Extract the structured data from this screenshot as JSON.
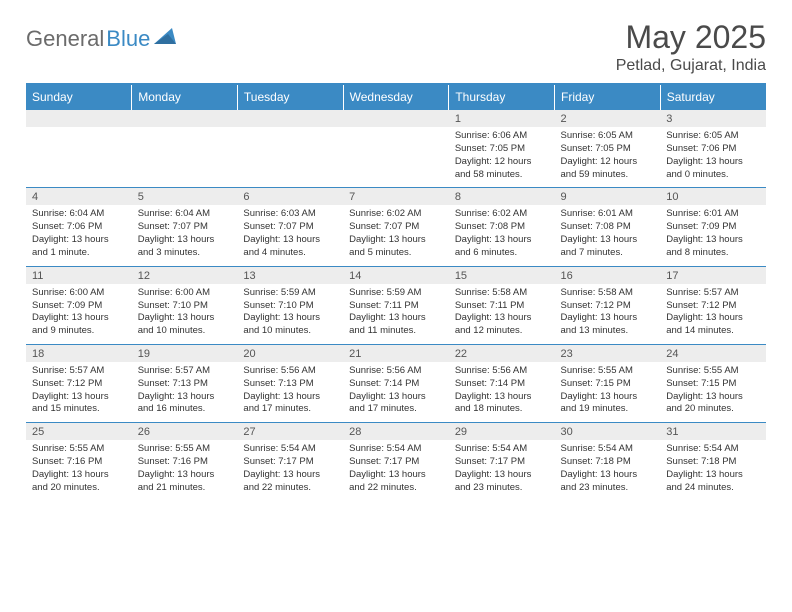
{
  "logo": {
    "part1": "General",
    "part2": "Blue"
  },
  "title": "May 2025",
  "location": "Petlad, Gujarat, India",
  "colors": {
    "accent": "#3b8ac4",
    "header_bg": "#3b8ac4",
    "daynum_bg": "#ededed",
    "text": "#333333",
    "title_text": "#4a4a4a"
  },
  "weekdays": [
    "Sunday",
    "Monday",
    "Tuesday",
    "Wednesday",
    "Thursday",
    "Friday",
    "Saturday"
  ],
  "weeks": [
    [
      {
        "n": "",
        "d": ""
      },
      {
        "n": "",
        "d": ""
      },
      {
        "n": "",
        "d": ""
      },
      {
        "n": "",
        "d": ""
      },
      {
        "n": "1",
        "d": "Sunrise: 6:06 AM\nSunset: 7:05 PM\nDaylight: 12 hours and 58 minutes."
      },
      {
        "n": "2",
        "d": "Sunrise: 6:05 AM\nSunset: 7:05 PM\nDaylight: 12 hours and 59 minutes."
      },
      {
        "n": "3",
        "d": "Sunrise: 6:05 AM\nSunset: 7:06 PM\nDaylight: 13 hours and 0 minutes."
      }
    ],
    [
      {
        "n": "4",
        "d": "Sunrise: 6:04 AM\nSunset: 7:06 PM\nDaylight: 13 hours and 1 minute."
      },
      {
        "n": "5",
        "d": "Sunrise: 6:04 AM\nSunset: 7:07 PM\nDaylight: 13 hours and 3 minutes."
      },
      {
        "n": "6",
        "d": "Sunrise: 6:03 AM\nSunset: 7:07 PM\nDaylight: 13 hours and 4 minutes."
      },
      {
        "n": "7",
        "d": "Sunrise: 6:02 AM\nSunset: 7:07 PM\nDaylight: 13 hours and 5 minutes."
      },
      {
        "n": "8",
        "d": "Sunrise: 6:02 AM\nSunset: 7:08 PM\nDaylight: 13 hours and 6 minutes."
      },
      {
        "n": "9",
        "d": "Sunrise: 6:01 AM\nSunset: 7:08 PM\nDaylight: 13 hours and 7 minutes."
      },
      {
        "n": "10",
        "d": "Sunrise: 6:01 AM\nSunset: 7:09 PM\nDaylight: 13 hours and 8 minutes."
      }
    ],
    [
      {
        "n": "11",
        "d": "Sunrise: 6:00 AM\nSunset: 7:09 PM\nDaylight: 13 hours and 9 minutes."
      },
      {
        "n": "12",
        "d": "Sunrise: 6:00 AM\nSunset: 7:10 PM\nDaylight: 13 hours and 10 minutes."
      },
      {
        "n": "13",
        "d": "Sunrise: 5:59 AM\nSunset: 7:10 PM\nDaylight: 13 hours and 10 minutes."
      },
      {
        "n": "14",
        "d": "Sunrise: 5:59 AM\nSunset: 7:11 PM\nDaylight: 13 hours and 11 minutes."
      },
      {
        "n": "15",
        "d": "Sunrise: 5:58 AM\nSunset: 7:11 PM\nDaylight: 13 hours and 12 minutes."
      },
      {
        "n": "16",
        "d": "Sunrise: 5:58 AM\nSunset: 7:12 PM\nDaylight: 13 hours and 13 minutes."
      },
      {
        "n": "17",
        "d": "Sunrise: 5:57 AM\nSunset: 7:12 PM\nDaylight: 13 hours and 14 minutes."
      }
    ],
    [
      {
        "n": "18",
        "d": "Sunrise: 5:57 AM\nSunset: 7:12 PM\nDaylight: 13 hours and 15 minutes."
      },
      {
        "n": "19",
        "d": "Sunrise: 5:57 AM\nSunset: 7:13 PM\nDaylight: 13 hours and 16 minutes."
      },
      {
        "n": "20",
        "d": "Sunrise: 5:56 AM\nSunset: 7:13 PM\nDaylight: 13 hours and 17 minutes."
      },
      {
        "n": "21",
        "d": "Sunrise: 5:56 AM\nSunset: 7:14 PM\nDaylight: 13 hours and 17 minutes."
      },
      {
        "n": "22",
        "d": "Sunrise: 5:56 AM\nSunset: 7:14 PM\nDaylight: 13 hours and 18 minutes."
      },
      {
        "n": "23",
        "d": "Sunrise: 5:55 AM\nSunset: 7:15 PM\nDaylight: 13 hours and 19 minutes."
      },
      {
        "n": "24",
        "d": "Sunrise: 5:55 AM\nSunset: 7:15 PM\nDaylight: 13 hours and 20 minutes."
      }
    ],
    [
      {
        "n": "25",
        "d": "Sunrise: 5:55 AM\nSunset: 7:16 PM\nDaylight: 13 hours and 20 minutes."
      },
      {
        "n": "26",
        "d": "Sunrise: 5:55 AM\nSunset: 7:16 PM\nDaylight: 13 hours and 21 minutes."
      },
      {
        "n": "27",
        "d": "Sunrise: 5:54 AM\nSunset: 7:17 PM\nDaylight: 13 hours and 22 minutes."
      },
      {
        "n": "28",
        "d": "Sunrise: 5:54 AM\nSunset: 7:17 PM\nDaylight: 13 hours and 22 minutes."
      },
      {
        "n": "29",
        "d": "Sunrise: 5:54 AM\nSunset: 7:17 PM\nDaylight: 13 hours and 23 minutes."
      },
      {
        "n": "30",
        "d": "Sunrise: 5:54 AM\nSunset: 7:18 PM\nDaylight: 13 hours and 23 minutes."
      },
      {
        "n": "31",
        "d": "Sunrise: 5:54 AM\nSunset: 7:18 PM\nDaylight: 13 hours and 24 minutes."
      }
    ]
  ]
}
